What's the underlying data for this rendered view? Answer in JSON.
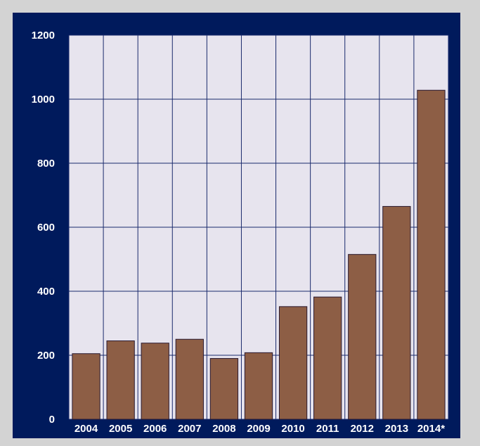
{
  "chart_data": {
    "type": "bar",
    "title": "",
    "xlabel": "",
    "ylabel": "",
    "categories": [
      "2004",
      "2005",
      "2006",
      "2007",
      "2008",
      "2009",
      "2010",
      "2011",
      "2012",
      "2013",
      "2014*"
    ],
    "values": [
      205,
      245,
      238,
      250,
      190,
      208,
      352,
      382,
      515,
      665,
      1028
    ],
    "ylim": [
      0,
      1200
    ],
    "yticks": [
      0,
      200,
      400,
      600,
      800,
      1000,
      1200
    ],
    "grid": true,
    "legend": "none",
    "colors": {
      "bar": "#8d5e45",
      "bar_edge": "#2a1a30",
      "plot_background": "#e7e4ee",
      "panel_background": "#001a5c",
      "gridline": "#1a2a6c",
      "outer_background": "#d3d3d3",
      "text": "#ffffff"
    }
  }
}
